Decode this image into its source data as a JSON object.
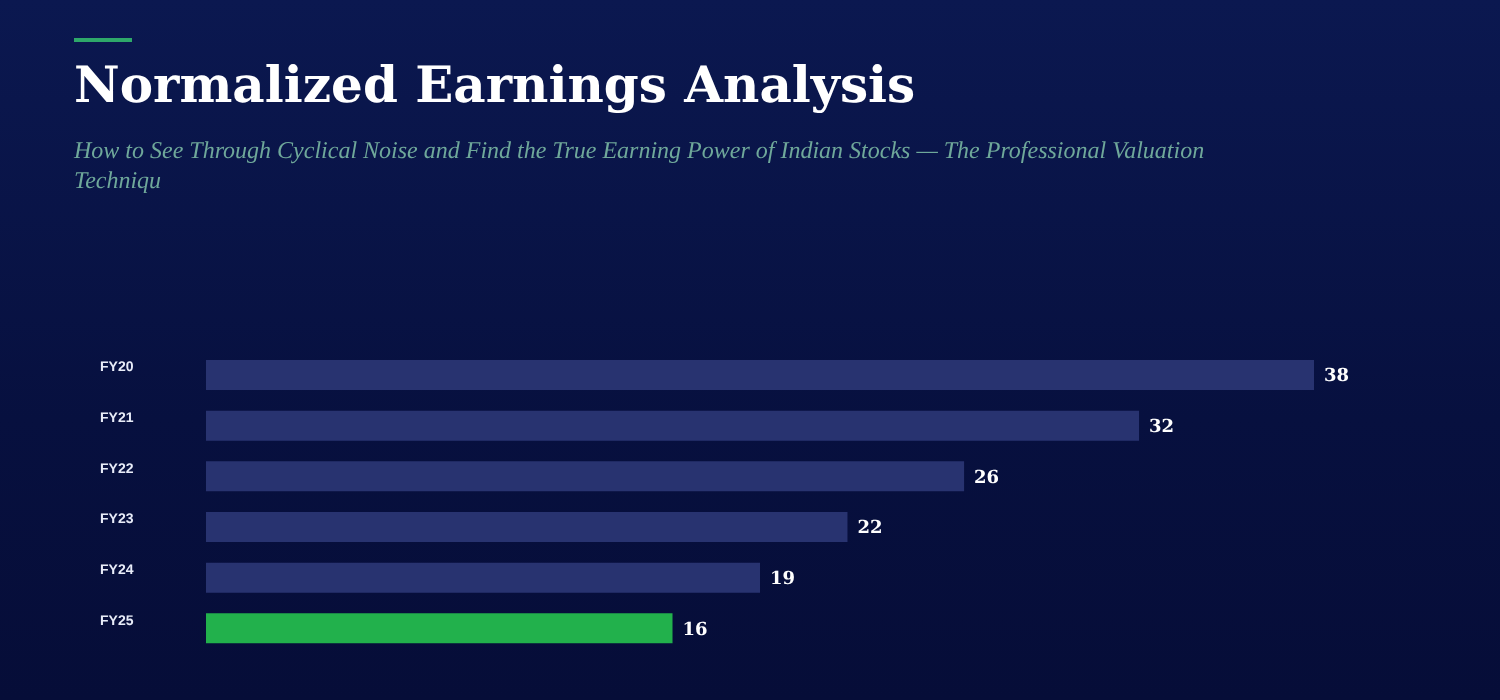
{
  "chart_data": {
    "type": "bar",
    "orientation": "horizontal",
    "title": "Normalized Earnings Analysis",
    "subtitle": "How to See Through Cyclical Noise and Find the True Earning Power of Indian Stocks — The Professional Valuation Techniqu",
    "categories": [
      "FY20",
      "FY21",
      "FY22",
      "FY23",
      "FY24",
      "FY25"
    ],
    "values": [
      38,
      32,
      26,
      22,
      19,
      16
    ],
    "colors": [
      "#283370",
      "#283370",
      "#283370",
      "#283370",
      "#283370",
      "#22b14c"
    ],
    "data_labels": true
  }
}
